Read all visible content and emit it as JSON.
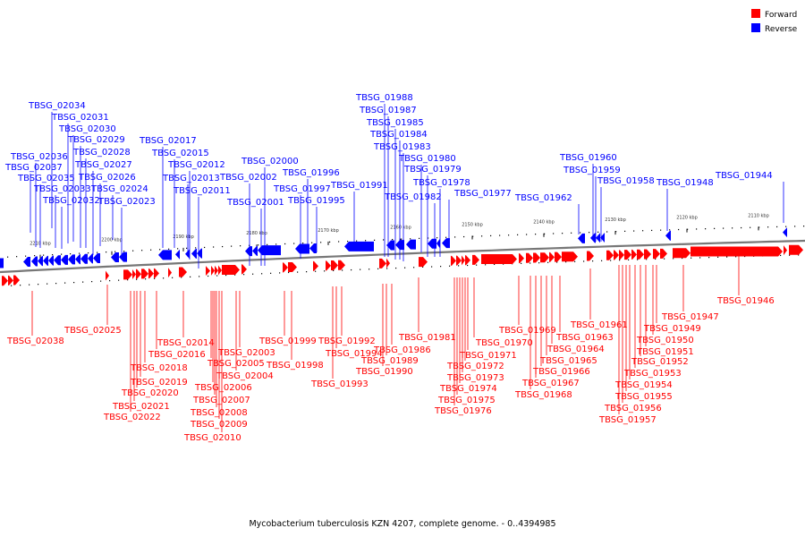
{
  "title": "Mycobacterium tuberculosis KZN 4207, complete genome. - 0..4394985",
  "colors": {
    "forward": "#ff0000",
    "reverse": "#0000ff",
    "backbone": "#888888",
    "tick": "#000000"
  },
  "legend": {
    "forward_label": "Forward",
    "reverse_label": "Reverse"
  },
  "scale_ticks": [
    "2210 kbp",
    "2200 kbp",
    "2190 kbp",
    "2180 kbp",
    "2170 kbp",
    "2160 kbp",
    "2150 kbp",
    "2140 kbp",
    "2130 kbp",
    "2120 kbp",
    "2110 kbp"
  ],
  "reverse_genes": [
    "TBSG_02037",
    "TBSG_02036",
    "TBSG_02035",
    "TBSG_02034",
    "TBSG_02033",
    "TBSG_02032",
    "TBSG_02031",
    "TBSG_02030",
    "TBSG_02029",
    "TBSG_02028",
    "TBSG_02027",
    "TBSG_02026",
    "TBSG_02024",
    "TBSG_02023",
    "TBSG_02017",
    "TBSG_02015",
    "TBSG_02013",
    "TBSG_02012",
    "TBSG_02011",
    "TBSG_02002",
    "TBSG_02001",
    "TBSG_02000",
    "TBSG_01997",
    "TBSG_01996",
    "TBSG_01995",
    "TBSG_01991",
    "TBSG_01988",
    "TBSG_01987",
    "TBSG_01985",
    "TBSG_01984",
    "TBSG_01983",
    "TBSG_01982",
    "TBSG_01980",
    "TBSG_01979",
    "TBSG_01978",
    "TBSG_01977",
    "TBSG_01962",
    "TBSG_01960",
    "TBSG_01959",
    "TBSG_01958",
    "TBSG_01948",
    "TBSG_01944"
  ],
  "forward_genes": [
    "TBSG_02038",
    "TBSG_02025",
    "TBSG_02022",
    "TBSG_02021",
    "TBSG_02020",
    "TBSG_02019",
    "TBSG_02018",
    "TBSG_02016",
    "TBSG_02014",
    "TBSG_02010",
    "TBSG_02009",
    "TBSG_02008",
    "TBSG_02007",
    "TBSG_02006",
    "TBSG_02005",
    "TBSG_02004",
    "TBSG_02003",
    "TBSG_01999",
    "TBSG_01998",
    "TBSG_01994",
    "TBSG_01993",
    "TBSG_01992",
    "TBSG_01990",
    "TBSG_01989",
    "TBSG_01986",
    "TBSG_01981",
    "TBSG_01976",
    "TBSG_01975",
    "TBSG_01974",
    "TBSG_01973",
    "TBSG_01972",
    "TBSG_01971",
    "TBSG_01970",
    "TBSG_01969",
    "TBSG_01968",
    "TBSG_01967",
    "TBSG_01966",
    "TBSG_01965",
    "TBSG_01964",
    "TBSG_01963",
    "TBSG_01961",
    "TBSG_01957",
    "TBSG_01956",
    "TBSG_01955",
    "TBSG_01954",
    "TBSG_01953",
    "TBSG_01952",
    "TBSG_01951",
    "TBSG_01950",
    "TBSG_01949",
    "TBSG_01947",
    "TBSG_01946"
  ]
}
